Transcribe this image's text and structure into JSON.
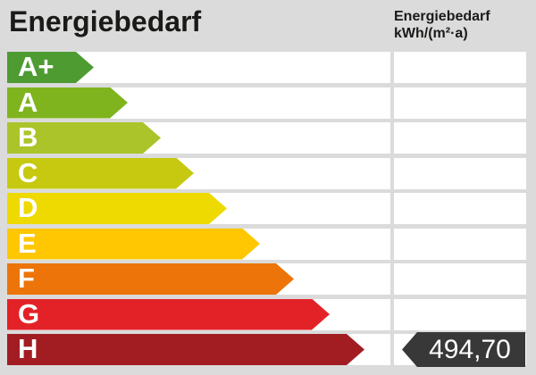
{
  "title": "Energiebedarf",
  "unit_header": {
    "line1": "Energiebedarf",
    "line2": "kWh/(m²·a)"
  },
  "scale": {
    "rows": [
      {
        "label": "A+",
        "color": "#4e9b31",
        "arrow_width": 97
      },
      {
        "label": "A",
        "color": "#7fb41e",
        "arrow_width": 135
      },
      {
        "label": "B",
        "color": "#aac42a",
        "arrow_width": 172
      },
      {
        "label": "C",
        "color": "#c6c90f",
        "arrow_width": 209
      },
      {
        "label": "D",
        "color": "#eed900",
        "arrow_width": 246
      },
      {
        "label": "E",
        "color": "#fec701",
        "arrow_width": 283
      },
      {
        "label": "F",
        "color": "#ec7408",
        "arrow_width": 321
      },
      {
        "label": "G",
        "color": "#e32227",
        "arrow_width": 361
      },
      {
        "label": "H",
        "color": "#a21d22",
        "arrow_width": 400
      }
    ]
  },
  "indicator": {
    "value_label": "494,70",
    "row": "H",
    "bg": "#383838",
    "text_color": "#ffffff"
  },
  "colors": {
    "page_bg": "#dbdbdb",
    "cell_bg": "#ffffff",
    "title_text": "#1a1a18"
  },
  "chart_data": {
    "type": "bar",
    "title": "Energiebedarf",
    "unit": "kWh/(m²·a)",
    "categories": [
      "A+",
      "A",
      "B",
      "C",
      "D",
      "E",
      "F",
      "G",
      "H"
    ],
    "series": [
      {
        "name": "rating-arrow-length-px",
        "values": [
          97,
          135,
          172,
          209,
          246,
          283,
          321,
          361,
          400
        ]
      }
    ],
    "bar_colors": [
      "#4e9b31",
      "#7fb41e",
      "#aac42a",
      "#c6c90f",
      "#eed900",
      "#fec701",
      "#ec7408",
      "#e32227",
      "#a21d22"
    ],
    "annotations": [
      {
        "category": "H",
        "value": 494.7,
        "label": "494,70"
      }
    ],
    "legend": false,
    "orientation": "horizontal"
  }
}
